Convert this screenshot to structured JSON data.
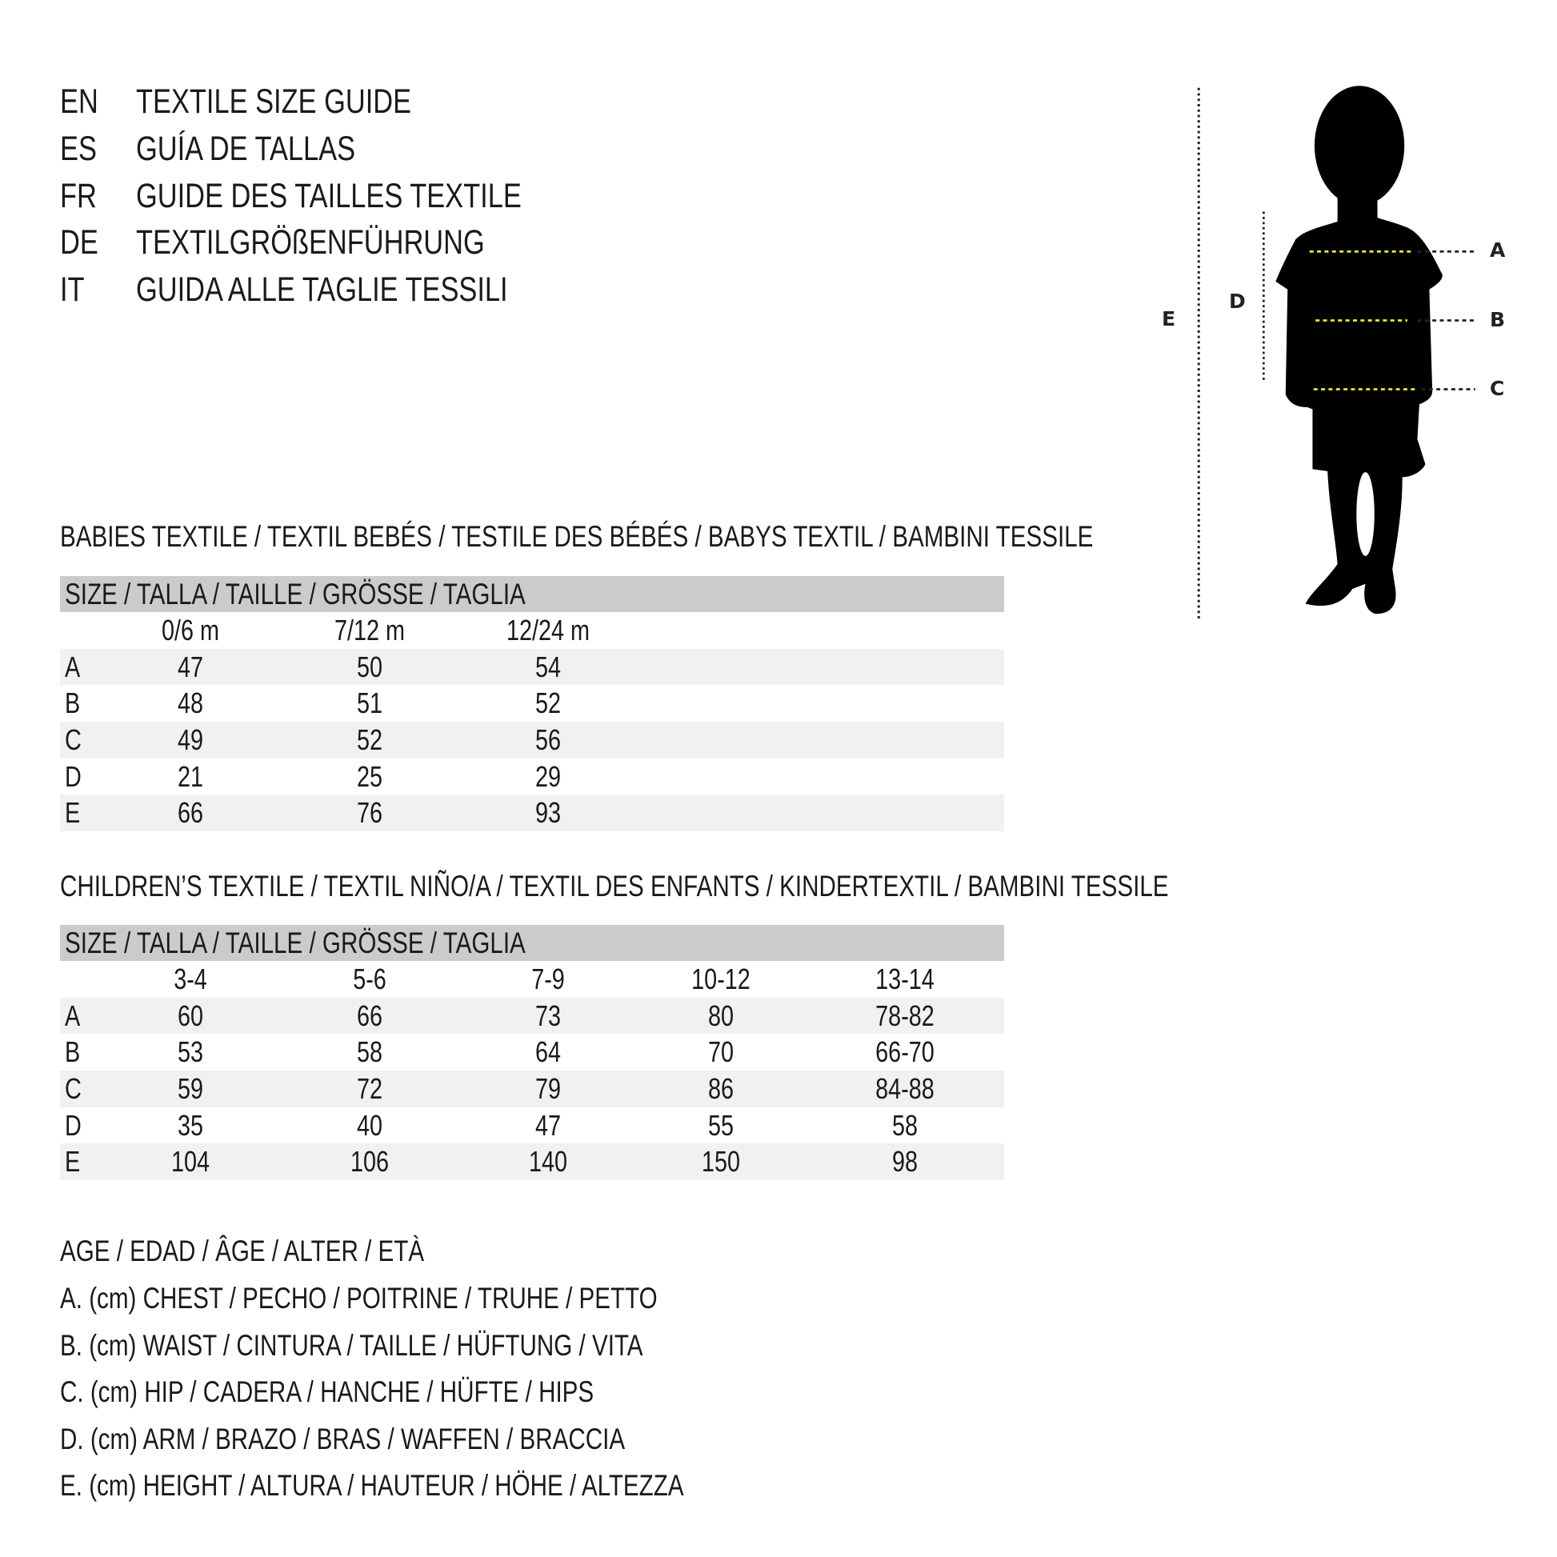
{
  "header": {
    "lines": [
      {
        "code": "EN",
        "title": "TEXTILE SIZE GUIDE"
      },
      {
        "code": "ES",
        "title": "GUÍA DE TALLAS"
      },
      {
        "code": "FR",
        "title": "GUIDE DES TAILLES TEXTILE"
      },
      {
        "code": "DE",
        "title": "TEXTILGRÖßENFÜHRUNG"
      },
      {
        "code": "IT",
        "title": "GUIDA ALLE TAGLIE TESSILI"
      }
    ]
  },
  "figure": {
    "labels": {
      "A": "A",
      "B": "B",
      "C": "C",
      "D": "D",
      "E": "E"
    },
    "silhouette_color": "#000000",
    "guide_color": "#f2e62a"
  },
  "babies": {
    "title": "BABIES TEXTILE / TEXTIL BEBÉS / TESTILE DES BÉBÉS / BABYS TEXTIL / BAMBINI TESSILE",
    "size_label": "SIZE / TALLA / TAILLE / GRÖSSE / TAGLIA",
    "columns": [
      "0/6 m",
      "7/12 m",
      "12/24 m"
    ],
    "rows": [
      {
        "label": "A",
        "values": [
          "47",
          "50",
          "54"
        ]
      },
      {
        "label": "B",
        "values": [
          "48",
          "51",
          "52"
        ]
      },
      {
        "label": "C",
        "values": [
          "49",
          "52",
          "56"
        ]
      },
      {
        "label": "D",
        "values": [
          "21",
          "25",
          "29"
        ]
      },
      {
        "label": "E",
        "values": [
          "66",
          "76",
          "93"
        ]
      }
    ]
  },
  "children": {
    "title": "CHILDREN’S TEXTILE / TEXTIL NIÑO/A / TEXTIL DES ENFANTS / KINDERTEXTIL / BAMBINI TESSILE",
    "size_label": "SIZE / TALLA / TAILLE / GRÖSSE / TAGLIA",
    "columns": [
      "3-4",
      "5-6",
      "7-9",
      "10-12",
      "13-14"
    ],
    "rows": [
      {
        "label": "A",
        "values": [
          "60",
          "66",
          "73",
          "80",
          "78-82"
        ]
      },
      {
        "label": "B",
        "values": [
          "53",
          "58",
          "64",
          "70",
          "66-70"
        ]
      },
      {
        "label": "C",
        "values": [
          "59",
          "72",
          "79",
          "86",
          "84-88"
        ]
      },
      {
        "label": "D",
        "values": [
          "35",
          "40",
          "47",
          "55",
          "58"
        ]
      },
      {
        "label": "E",
        "values": [
          "104",
          "106",
          "140",
          "150",
          "98"
        ]
      }
    ]
  },
  "legend": {
    "age": "AGE / EDAD / ÂGE / ALTER / ETÀ",
    "items": [
      "A. (cm) CHEST / PECHO / POITRINE / TRUHE / PETTO",
      "B. (cm) WAIST / CINTURA / TAILLE / HÜFTUNG / VITA",
      "C. (cm) HIP / CADERA / HANCHE / HÜFTE / HIPS",
      "D. (cm) ARM / BRAZO / BRAS / WAFFEN / BRACCIA",
      "E. (cm) HEIGHT / ALTURA / HAUTEUR / HÖHE / ALTEZZA"
    ]
  }
}
